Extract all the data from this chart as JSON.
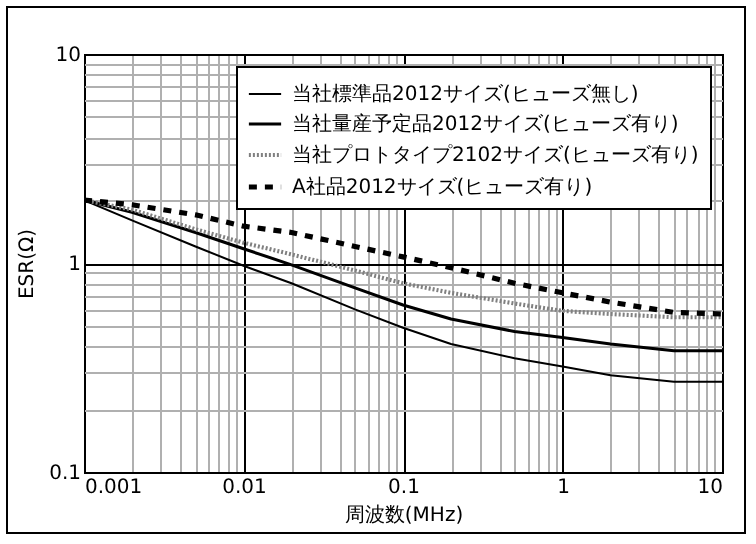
{
  "chart_data": {
    "type": "line",
    "xlabel": "周波数(MHz)",
    "ylabel": "ESR(Ω)",
    "log": "xy",
    "grid": true,
    "legend": "top right",
    "marker": "none",
    "x": [
      0.001,
      0.002,
      0.005,
      0.01,
      0.02,
      0.05,
      0.1,
      0.2,
      0.5,
      1,
      2,
      5,
      10
    ],
    "xlim": [
      0.001,
      10
    ],
    "ylim": [
      0.1,
      10
    ],
    "xticks": [
      0.001,
      {
        "value": 0.002,
        "label": null
      },
      {
        "value": 0.003,
        "label": null
      },
      {
        "value": 0.004,
        "label": null
      },
      {
        "value": 0.005,
        "label": null
      },
      {
        "value": 0.006,
        "label": null
      },
      {
        "value": 0.007,
        "label": null
      },
      {
        "value": 0.008,
        "label": null
      },
      {
        "value": 0.009,
        "label": null
      },
      0.01,
      {
        "value": 0.02,
        "label": null
      },
      {
        "value": 0.03,
        "label": null
      },
      {
        "value": 0.04,
        "label": null
      },
      {
        "value": 0.05,
        "label": null
      },
      {
        "value": 0.06,
        "label": null
      },
      {
        "value": 0.07,
        "label": null
      },
      {
        "value": 0.08,
        "label": null
      },
      {
        "value": 0.09,
        "label": null
      },
      0.1,
      {
        "value": 0.2,
        "label": null
      },
      {
        "value": 0.3,
        "label": null
      },
      {
        "value": 0.4,
        "label": null
      },
      {
        "value": 0.5,
        "label": null
      },
      {
        "value": 0.6,
        "label": null
      },
      {
        "value": 0.7,
        "label": null
      },
      {
        "value": 0.8,
        "label": null
      },
      {
        "value": 0.9,
        "label": null
      },
      1,
      {
        "value": 2,
        "label": null
      },
      {
        "value": 3,
        "label": null
      },
      {
        "value": 4,
        "label": null
      },
      {
        "value": 5,
        "label": null
      },
      {
        "value": 6,
        "label": null
      },
      {
        "value": 7,
        "label": null
      },
      {
        "value": 8,
        "label": null
      },
      {
        "value": 9,
        "label": null
      },
      10
    ],
    "yticks": [
      0.1,
      {
        "value": 0.2,
        "label": null
      },
      {
        "value": 0.3,
        "label": null
      },
      {
        "value": 0.4,
        "label": null
      },
      {
        "value": 0.5,
        "label": null
      },
      {
        "value": 0.6,
        "label": null
      },
      {
        "value": 0.7,
        "label": null
      },
      {
        "value": 0.8,
        "label": null
      },
      {
        "value": 0.9,
        "label": null
      },
      1,
      {
        "value": 2,
        "label": null
      },
      {
        "value": 3,
        "label": null
      },
      {
        "value": 4,
        "label": null
      },
      {
        "value": 5,
        "label": null
      },
      {
        "value": 6,
        "label": null
      },
      {
        "value": 7,
        "label": null
      },
      {
        "value": 8,
        "label": null
      },
      {
        "value": 9,
        "label": null
      },
      10
    ],
    "series": [
      {
        "name": "当社標準品2012サイズ(ヒューズ無し)",
        "color": "#000000",
        "line_style": "solid",
        "values": [
          2.0,
          1.6,
          1.2,
          0.97,
          0.8,
          0.6,
          0.49,
          0.41,
          0.35,
          0.32,
          0.29,
          0.27,
          0.27
        ]
      },
      {
        "name": "当社量産予定品2012サイズ(ヒューズ有り)",
        "color": "#000000",
        "line_style": "solid",
        "values": [
          2.0,
          1.75,
          1.4,
          1.17,
          0.98,
          0.76,
          0.63,
          0.54,
          0.47,
          0.44,
          0.41,
          0.38,
          0.38
        ]
      },
      {
        "name": "当社プロトタイプ2102サイズ(ヒューズ有り)",
        "color": "#808080",
        "line_style": "dotted",
        "values": [
          2.0,
          1.8,
          1.45,
          1.25,
          1.1,
          0.92,
          0.8,
          0.72,
          0.64,
          0.59,
          0.57,
          0.55,
          0.55
        ]
      },
      {
        "name": "A社品2012サイズ(ヒューズ有り)",
        "color": "#000000",
        "line_style": "dashed",
        "values": [
          2.0,
          1.9,
          1.7,
          1.5,
          1.4,
          1.2,
          1.07,
          0.95,
          0.8,
          0.72,
          0.65,
          0.58,
          0.57
        ]
      }
    ]
  }
}
